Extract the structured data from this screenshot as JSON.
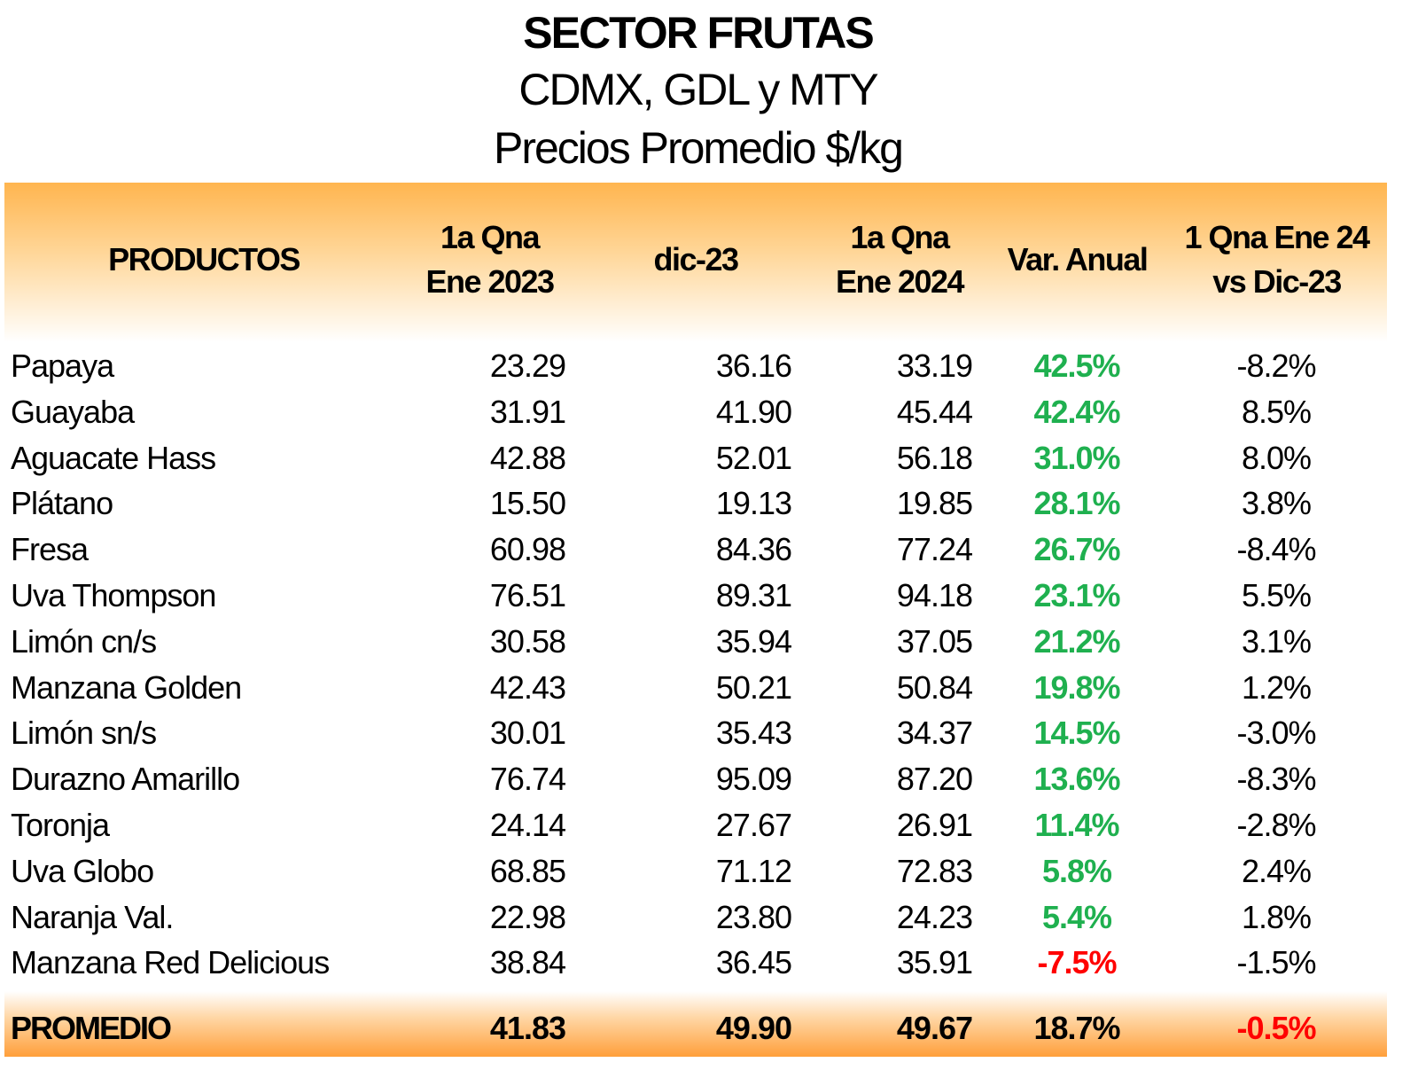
{
  "title": "SECTOR FRUTAS",
  "subtitle": "CDMX, GDL y MTY",
  "subtitle2": "Precios Promedio $/kg",
  "colors": {
    "positive": "#1fb04f",
    "negative": "#ff0000",
    "header": "#ffb54f"
  },
  "headers": {
    "products": "PRODUCTOS",
    "col1_l1": "1a Qna",
    "col1_l2": "Ene 2023",
    "col2": "dic-23",
    "col3_l1": "1a Qna",
    "col3_l2": "Ene 2024",
    "col4": "Var. Anual",
    "col5_l1": "1 Qna Ene 24",
    "col5_l2": "vs Dic-23"
  },
  "rows": [
    {
      "product": "Papaya",
      "ene23": "23.29",
      "dic23": "36.16",
      "ene24": "33.19",
      "var_anual": "42.5%",
      "var_mensual": "-8.2%"
    },
    {
      "product": "Guayaba",
      "ene23": "31.91",
      "dic23": "41.90",
      "ene24": "45.44",
      "var_anual": "42.4%",
      "var_mensual": "8.5%"
    },
    {
      "product": "Aguacate Hass",
      "ene23": "42.88",
      "dic23": "52.01",
      "ene24": "56.18",
      "var_anual": "31.0%",
      "var_mensual": "8.0%"
    },
    {
      "product": "Plátano",
      "ene23": "15.50",
      "dic23": "19.13",
      "ene24": "19.85",
      "var_anual": "28.1%",
      "var_mensual": "3.8%"
    },
    {
      "product": "Fresa",
      "ene23": "60.98",
      "dic23": "84.36",
      "ene24": "77.24",
      "var_anual": "26.7%",
      "var_mensual": "-8.4%"
    },
    {
      "product": "Uva Thompson",
      "ene23": "76.51",
      "dic23": "89.31",
      "ene24": "94.18",
      "var_anual": "23.1%",
      "var_mensual": "5.5%"
    },
    {
      "product": "Limón cn/s",
      "ene23": "30.58",
      "dic23": "35.94",
      "ene24": "37.05",
      "var_anual": "21.2%",
      "var_mensual": "3.1%"
    },
    {
      "product": "Manzana Golden",
      "ene23": "42.43",
      "dic23": "50.21",
      "ene24": "50.84",
      "var_anual": "19.8%",
      "var_mensual": "1.2%"
    },
    {
      "product": "Limón sn/s",
      "ene23": "30.01",
      "dic23": "35.43",
      "ene24": "34.37",
      "var_anual": "14.5%",
      "var_mensual": "-3.0%"
    },
    {
      "product": "Durazno Amarillo",
      "ene23": "76.74",
      "dic23": "95.09",
      "ene24": "87.20",
      "var_anual": "13.6%",
      "var_mensual": "-8.3%"
    },
    {
      "product": "Toronja",
      "ene23": "24.14",
      "dic23": "27.67",
      "ene24": "26.91",
      "var_anual": "11.4%",
      "var_mensual": "-2.8%"
    },
    {
      "product": "Uva Globo",
      "ene23": "68.85",
      "dic23": "71.12",
      "ene24": "72.83",
      "var_anual": "5.8%",
      "var_mensual": "2.4%"
    },
    {
      "product": "Naranja Val.",
      "ene23": "22.98",
      "dic23": "23.80",
      "ene24": "24.23",
      "var_anual": "5.4%",
      "var_mensual": "1.8%"
    },
    {
      "product": "Manzana Red Delicious",
      "ene23": "38.84",
      "dic23": "36.45",
      "ene24": "35.91",
      "var_anual": "-7.5%",
      "var_mensual": "-1.5%"
    }
  ],
  "average": {
    "product": "PROMEDIO",
    "ene23": "41.83",
    "dic23": "49.90",
    "ene24": "49.67",
    "var_anual": "18.7%",
    "var_mensual": "-0.5%"
  }
}
